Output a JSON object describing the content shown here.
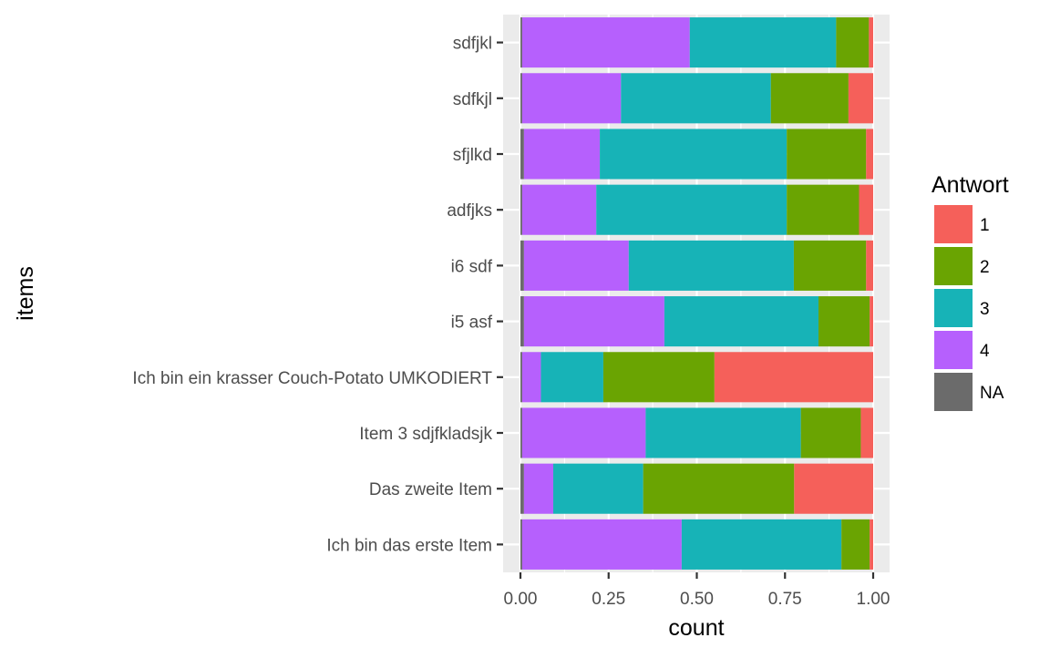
{
  "chart_data": {
    "type": "bar",
    "orientation": "horizontal",
    "stacked": true,
    "position": "fill",
    "xlabel": "count",
    "ylabel": "items",
    "xlim": [
      0,
      1
    ],
    "x_ticks": [
      "0.00",
      "0.25",
      "0.50",
      "0.75",
      "1.00"
    ],
    "x_tick_values": [
      0,
      0.25,
      0.5,
      0.75,
      1
    ],
    "grid": true,
    "legend_position": "right",
    "categories": [
      "sdfjkl",
      "sdfkjl",
      "sfjlkd",
      "adfjks",
      "i6 sdf",
      "i5 asf",
      "Ich bin ein krasser Couch-Potato UMKODIERT",
      "Item 3 sdjfkladsjk",
      "Das zweite Item",
      "Ich bin das erste Item"
    ],
    "series": [
      {
        "name": "NA",
        "color": "#6b6b6b",
        "values": [
          0.005,
          0.005,
          0.01,
          0.005,
          0.01,
          0.01,
          0.005,
          0.005,
          0.01,
          0.005
        ]
      },
      {
        "name": "4",
        "color": "#b660fd",
        "values": [
          0.475,
          0.28,
          0.215,
          0.21,
          0.297,
          0.398,
          0.053,
          0.35,
          0.083,
          0.452
        ]
      },
      {
        "name": "3",
        "color": "#17b3b7",
        "values": [
          0.415,
          0.425,
          0.53,
          0.54,
          0.468,
          0.437,
          0.177,
          0.44,
          0.255,
          0.453
        ]
      },
      {
        "name": "2",
        "color": "#6aa402",
        "values": [
          0.093,
          0.22,
          0.225,
          0.205,
          0.205,
          0.145,
          0.315,
          0.17,
          0.428,
          0.08
        ]
      },
      {
        "name": "1",
        "color": "#f5605a",
        "values": [
          0.012,
          0.07,
          0.02,
          0.04,
          0.02,
          0.01,
          0.45,
          0.035,
          0.224,
          0.01
        ]
      }
    ]
  },
  "legend": {
    "title": "Antwort",
    "items": [
      {
        "label": "1",
        "color": "#f5605a"
      },
      {
        "label": "2",
        "color": "#6aa402"
      },
      {
        "label": "3",
        "color": "#17b3b7"
      },
      {
        "label": "4",
        "color": "#b660fd"
      },
      {
        "label": "NA",
        "color": "#6b6b6b"
      }
    ]
  },
  "colors": {
    "panel_background": "#ebebeb",
    "grid_major": "#ffffff",
    "tick_text": "#4d4d4d",
    "tick_mark": "#333333"
  }
}
